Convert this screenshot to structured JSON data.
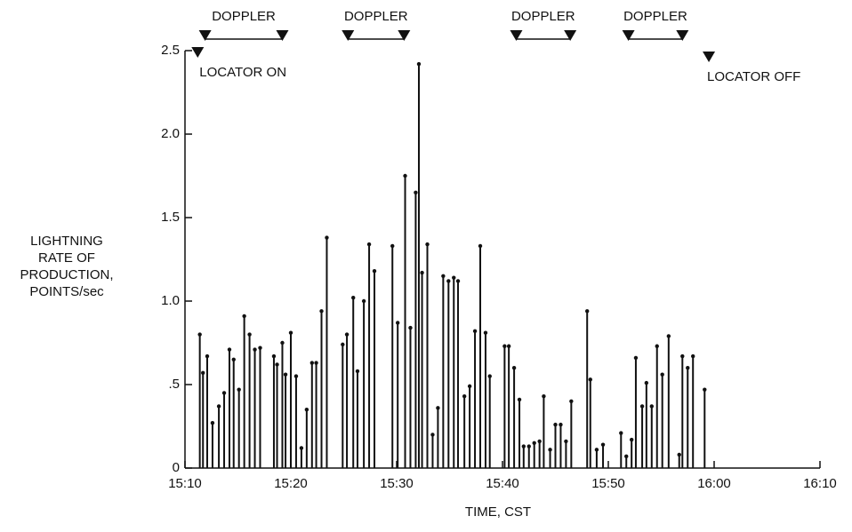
{
  "chart_data": {
    "type": "stem",
    "ylabel_lines": [
      "LIGHTNING",
      "RATE OF",
      "PRODUCTION,",
      "POINTS/sec"
    ],
    "xlabel": "TIME, CST",
    "xlim": [
      910,
      970
    ],
    "xticks": [
      {
        "value": 910,
        "label": "15:10"
      },
      {
        "value": 920,
        "label": "15:20"
      },
      {
        "value": 930,
        "label": "15:30"
      },
      {
        "value": 940,
        "label": "15:40"
      },
      {
        "value": 950,
        "label": "15:50"
      },
      {
        "value": 960,
        "label": "16:00"
      },
      {
        "value": 970,
        "label": "16:10"
      }
    ],
    "ylim": [
      0,
      2.5
    ],
    "yticks": [
      0,
      {
        "value": 0.5,
        "label": ".5"
      },
      {
        "value": 1,
        "label": "1.0"
      },
      1.5,
      {
        "value": 2,
        "label": "2.0"
      },
      2.5
    ],
    "color": "#111111",
    "x": [
      911.4,
      911.7,
      912.1,
      912.6,
      913.2,
      913.7,
      914.2,
      914.6,
      915.1,
      915.6,
      916.1,
      916.6,
      917.1,
      918.4,
      918.7,
      919.2,
      919.5,
      920.0,
      920.5,
      921.0,
      921.5,
      922.0,
      922.4,
      922.9,
      923.4,
      924.9,
      925.3,
      925.9,
      926.3,
      926.9,
      927.4,
      927.9,
      929.6,
      930.1,
      930.8,
      931.3,
      931.8,
      932.1,
      932.4,
      932.9,
      933.4,
      933.9,
      934.4,
      934.9,
      935.4,
      935.8,
      936.4,
      936.9,
      937.4,
      937.9,
      938.4,
      938.8,
      940.2,
      940.6,
      941.1,
      941.6,
      942.0,
      942.5,
      943.0,
      943.5,
      943.9,
      944.5,
      945.0,
      945.5,
      946.0,
      946.5,
      948.0,
      948.3,
      948.9,
      949.5,
      951.2,
      951.7,
      952.2,
      952.6,
      953.2,
      953.6,
      954.1,
      954.6,
      955.1,
      955.7,
      956.7,
      957.0,
      957.5,
      958.0,
      959.1
    ],
    "values": [
      0.8,
      0.57,
      0.67,
      0.27,
      0.37,
      0.45,
      0.71,
      0.65,
      0.47,
      0.91,
      0.8,
      0.71,
      0.72,
      0.67,
      0.62,
      0.75,
      0.56,
      0.81,
      0.55,
      0.12,
      0.35,
      0.63,
      0.63,
      0.94,
      1.38,
      0.74,
      0.8,
      1.02,
      0.58,
      1.0,
      1.34,
      1.18,
      1.33,
      0.87,
      1.75,
      0.84,
      1.65,
      2.42,
      1.17,
      1.34,
      0.2,
      0.36,
      1.15,
      1.12,
      1.14,
      1.12,
      0.43,
      0.49,
      0.82,
      1.33,
      0.81,
      0.55,
      0.73,
      0.73,
      0.6,
      0.41,
      0.13,
      0.13,
      0.15,
      0.16,
      0.43,
      0.11,
      0.26,
      0.26,
      0.16,
      0.4,
      0.94,
      0.53,
      0.11,
      0.14,
      0.21,
      0.07,
      0.17,
      0.66,
      0.37,
      0.51,
      0.37,
      0.73,
      0.56,
      0.79,
      0.08,
      0.67,
      0.6,
      0.67,
      0.47
    ],
    "doppler": [
      {
        "label": "DOPPLER",
        "start": 911.9,
        "end": 919.2
      },
      {
        "label": "DOPPLER",
        "start": 925.4,
        "end": 930.7
      },
      {
        "label": "DOPPLER",
        "start": 941.3,
        "end": 946.4
      },
      {
        "label": "DOPPLER",
        "start": 951.9,
        "end": 957.0
      }
    ],
    "locator_on": {
      "label": "LOCATOR ON",
      "x": 911.2
    },
    "locator_off": {
      "label": "LOCATOR OFF",
      "x": 959.5
    }
  }
}
